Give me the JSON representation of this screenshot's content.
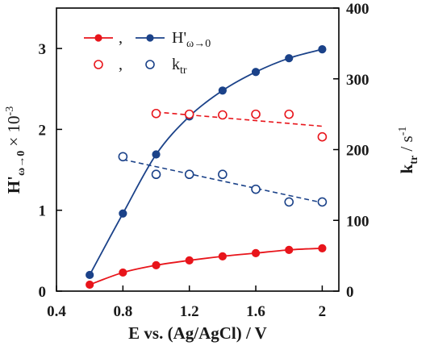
{
  "chart_data": {
    "type": "scatter",
    "x": {
      "label": "E vs. (Ag/AgCl) / V",
      "range": [
        0.4,
        2.1
      ],
      "ticks": [
        0.4,
        0.8,
        1.2,
        1.6,
        2.0
      ],
      "tick_labels": [
        "0.4",
        "0.8",
        "1.2",
        "1.6",
        "2"
      ]
    },
    "y_left": {
      "label_main": "H'",
      "label_sub": "ω→0",
      "label_suffix": " × 10",
      "label_sup": "-3",
      "range": [
        0,
        3.5
      ],
      "ticks": [
        0,
        1,
        2,
        3
      ],
      "tick_labels": [
        "0",
        "1",
        "2",
        "3"
      ]
    },
    "y_right": {
      "label_main": "k",
      "label_sub": "tr",
      "label_suffix": " / s",
      "label_sup": "-1",
      "range": [
        0,
        400
      ],
      "ticks": [
        0,
        100,
        200,
        300,
        400
      ],
      "tick_labels": [
        "0",
        "100",
        "200",
        "300",
        "400"
      ]
    },
    "series": [
      {
        "id": "red_filled",
        "axis": "left",
        "marker": "filled",
        "color": "#e8151b",
        "line": "solid",
        "x": [
          0.6,
          0.8,
          1.0,
          1.2,
          1.4,
          1.6,
          1.8,
          2.0
        ],
        "y": [
          0.08,
          0.23,
          0.32,
          0.38,
          0.43,
          0.47,
          0.51,
          0.53
        ]
      },
      {
        "id": "blue_filled",
        "axis": "left",
        "marker": "filled",
        "color": "#1b4289",
        "line": "solid",
        "x": [
          0.6,
          0.8,
          1.0,
          1.2,
          1.4,
          1.6,
          1.8,
          2.0
        ],
        "y": [
          0.2,
          0.96,
          1.69,
          2.16,
          2.48,
          2.71,
          2.88,
          2.99
        ]
      },
      {
        "id": "red_open",
        "axis": "right",
        "marker": "open",
        "color": "#e8151b",
        "line": "dashed",
        "x": [
          1.0,
          1.2,
          1.4,
          1.6,
          1.8,
          2.0
        ],
        "y": [
          251,
          250,
          249,
          250,
          250,
          218
        ],
        "fit": [
          [
            1.0,
            253
          ],
          [
            2.0,
            233
          ]
        ]
      },
      {
        "id": "blue_open",
        "axis": "right",
        "marker": "open",
        "color": "#1b4289",
        "line": "dashed",
        "x": [
          0.8,
          1.0,
          1.2,
          1.4,
          1.6,
          1.8,
          2.0
        ],
        "y": [
          190,
          165,
          165,
          165,
          144,
          126,
          126
        ],
        "fit": [
          [
            0.8,
            186
          ],
          [
            2.0,
            125
          ]
        ]
      }
    ],
    "legend": {
      "placement": "top-left",
      "rows": [
        {
          "left_series": "red_filled",
          "comma": ",",
          "right_series": "blue_filled",
          "text_main": "H'",
          "text_sub": "ω→0"
        },
        {
          "left_series": "red_open",
          "comma": ",",
          "right_series": "blue_open",
          "text_main": "k",
          "text_sub": "tr"
        }
      ]
    }
  }
}
